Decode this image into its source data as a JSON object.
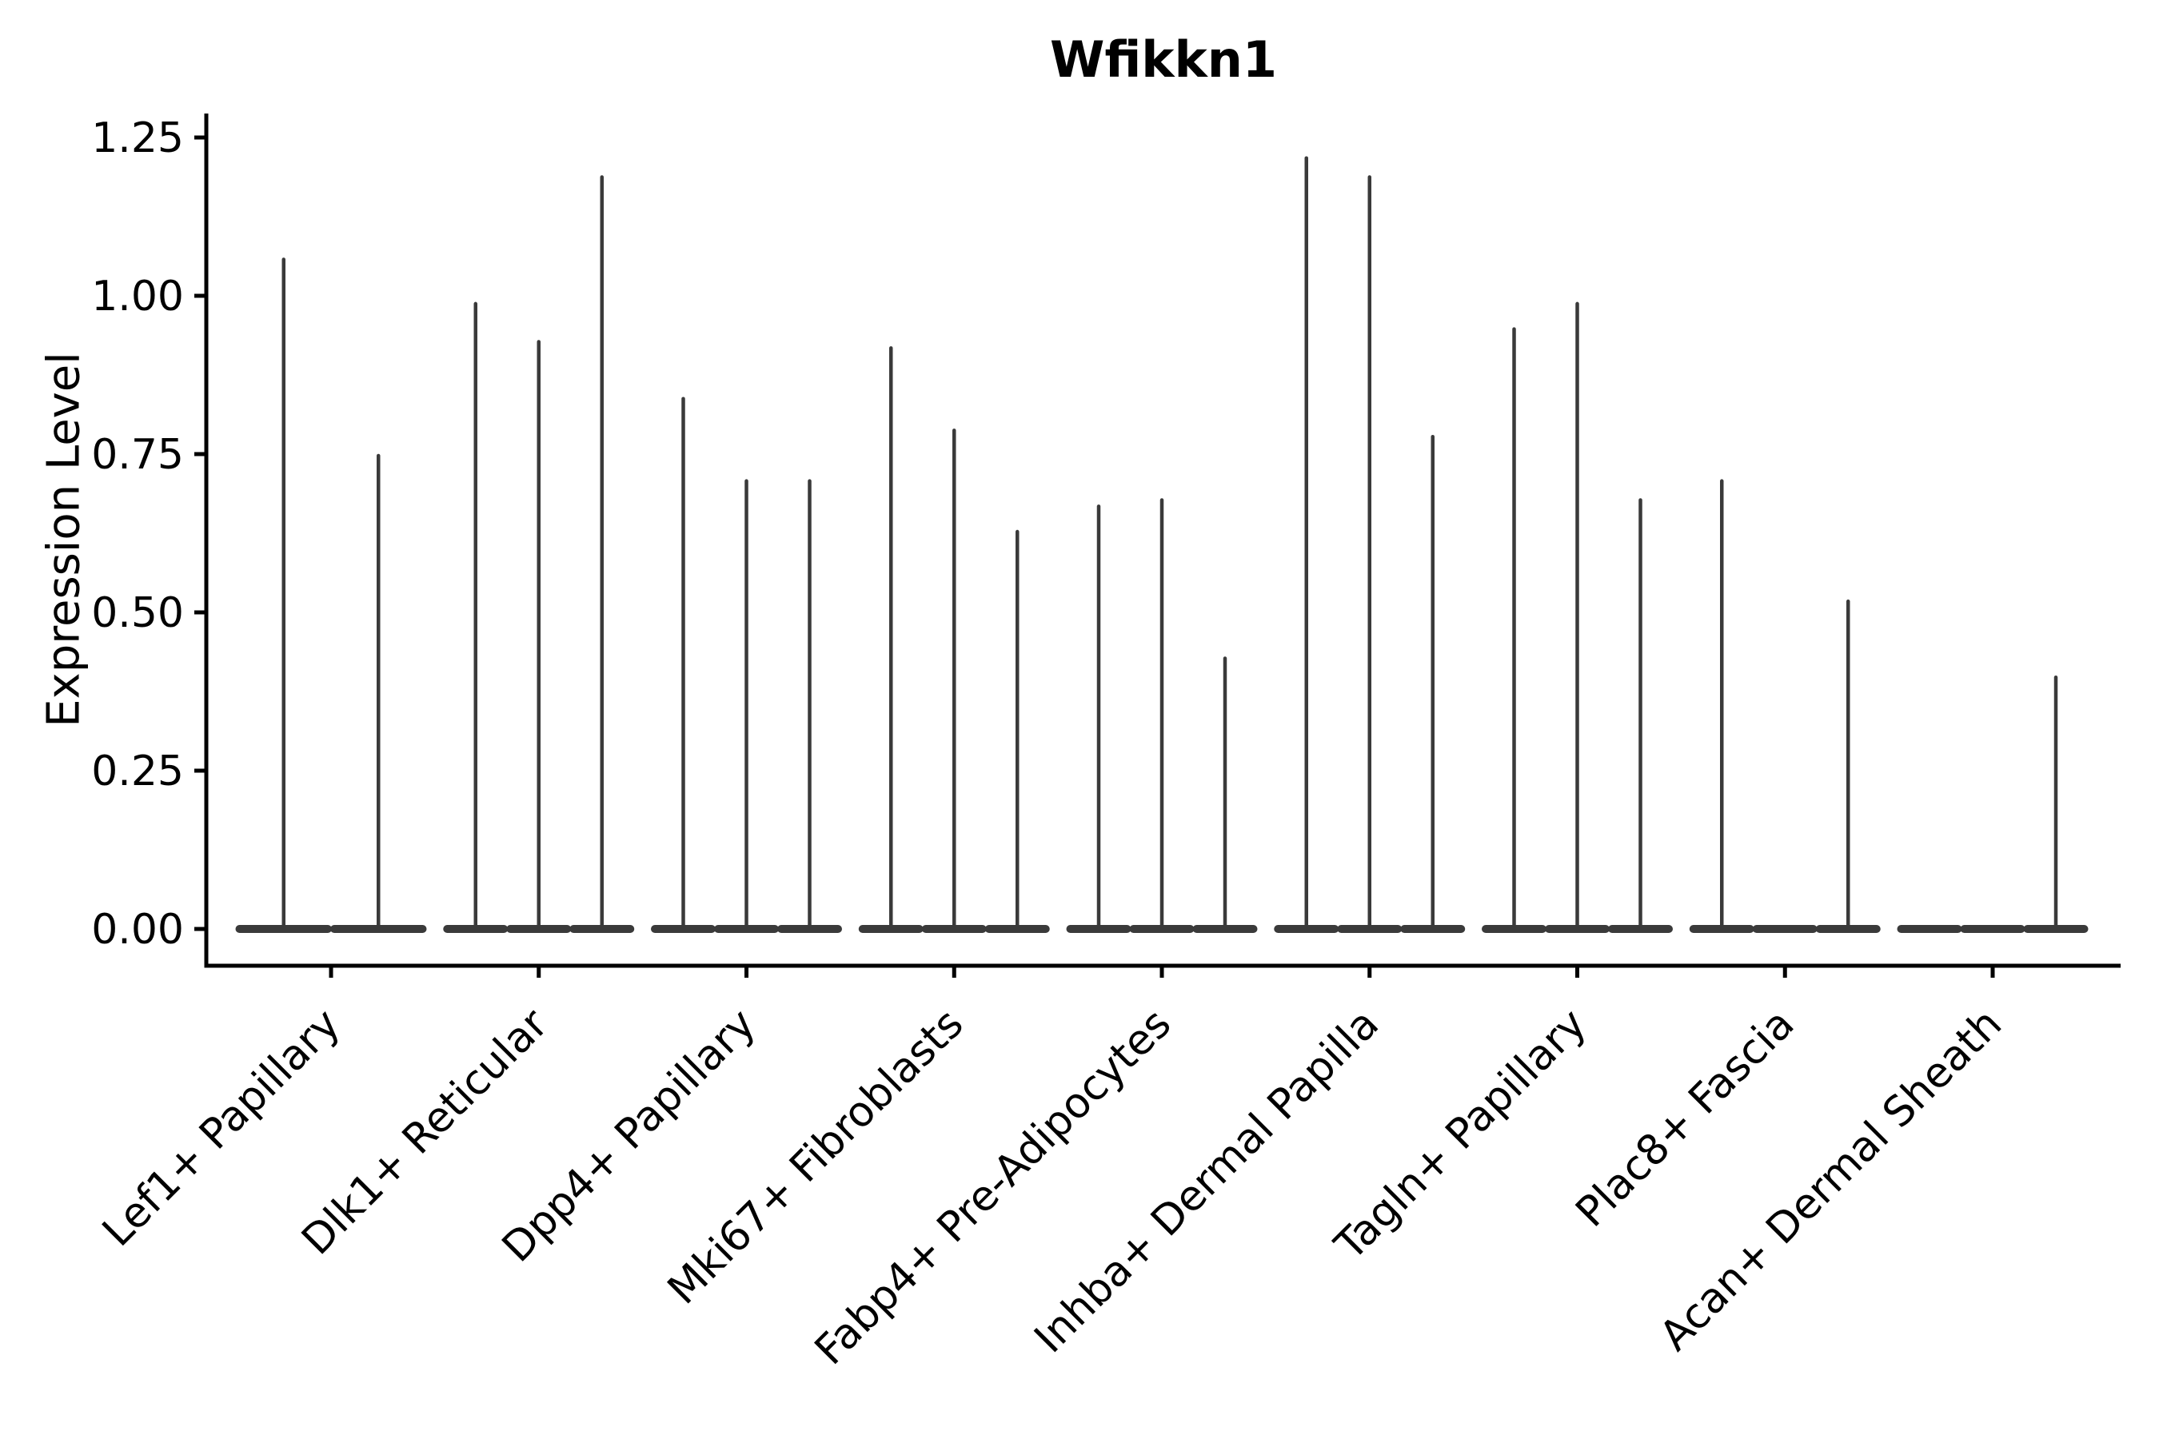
{
  "chart_data": {
    "type": "violin",
    "title": "Wfikkn1",
    "ylabel": "Expression Level",
    "xlabel": "",
    "ylim": [
      -0.06,
      1.29
    ],
    "ytick_labels": [
      "0.00",
      "0.25",
      "0.50",
      "0.75",
      "1.00",
      "1.25"
    ],
    "ytick_values": [
      0.0,
      0.25,
      0.5,
      0.75,
      1.0,
      1.25
    ],
    "grid": false,
    "legend": null,
    "categories": [
      "Lef1+ Papillary",
      "Dlk1+ Reticular",
      "Dpp4+ Papillary",
      "Mki67+ Fibroblasts",
      "Fabp4+ Pre-Adipocytes",
      "Inhba+ Dermal Papilla",
      "Tagln+ Papillary",
      "Plac8+ Fascia",
      "Acan+ Dermal Sheath"
    ],
    "groups": [
      {
        "category": "Lef1+ Papillary",
        "violin_max_values": [
          1.06,
          0.75
        ]
      },
      {
        "category": "Dlk1+ Reticular",
        "violin_max_values": [
          0.99,
          0.93,
          1.19
        ]
      },
      {
        "category": "Dpp4+ Papillary",
        "violin_max_values": [
          0.84,
          0.71,
          0.71
        ]
      },
      {
        "category": "Mki67+ Fibroblasts",
        "violin_max_values": [
          0.92,
          0.79,
          0.63
        ]
      },
      {
        "category": "Fabp4+ Pre-Adipocytes",
        "violin_max_values": [
          0.67,
          0.68,
          0.43
        ]
      },
      {
        "category": "Inhba+ Dermal Papilla",
        "violin_max_values": [
          1.22,
          1.19,
          0.78
        ]
      },
      {
        "category": "Tagln+ Papillary",
        "violin_max_values": [
          0.95,
          0.99,
          0.68
        ]
      },
      {
        "category": "Plac8+ Fascia",
        "violin_max_values": [
          0.71,
          0.0,
          0.52
        ]
      },
      {
        "category": "Acan+ Dermal Sheath",
        "violin_max_values": [
          0.0,
          0.0,
          0.4
        ]
      }
    ],
    "description": "Violin plot of Wfikkn1 expression; sparse expression gives each violin a flat base at 0 with a thin spike up to its maximum value",
    "colors": {
      "violin": "#3a3a3a",
      "axis": "#000000",
      "text": "#000000",
      "background": "#ffffff"
    }
  }
}
